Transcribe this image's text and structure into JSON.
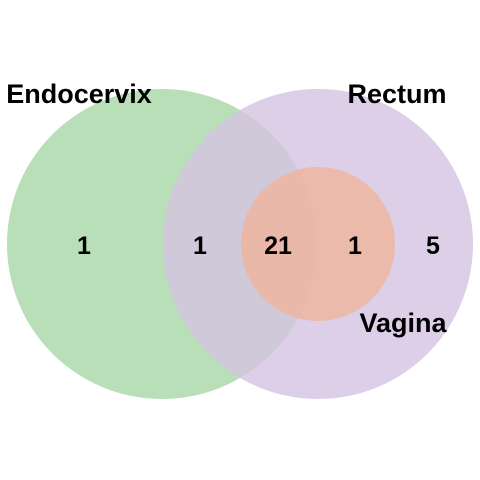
{
  "sets": [
    {
      "id": "endocervix",
      "label": "Endocervix",
      "color": "#a8d8a8"
    },
    {
      "id": "rectum",
      "label": "Rectum",
      "color": "#d4c4e2"
    },
    {
      "id": "vagina",
      "label": "Vagina",
      "color": "#f0b49a"
    }
  ],
  "regions": {
    "endocervix_only": "1",
    "endocervix_rectum": "1",
    "all_three": "21",
    "rectum_vagina": "1",
    "rectum_only": "5"
  }
}
